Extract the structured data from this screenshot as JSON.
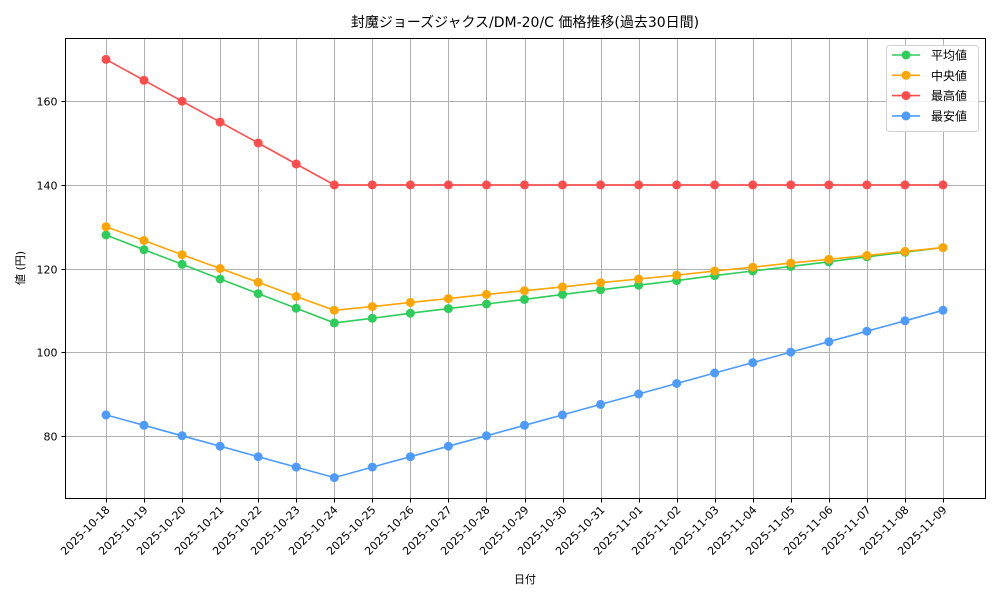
{
  "chart_data": {
    "type": "line",
    "title": "封魔ジョーズジャクス/DM-20/C 価格推移(過去30日間)",
    "xlabel": "日付",
    "ylabel": "値 (円)",
    "ylim": [
      65,
      175
    ],
    "yticks": [
      80,
      100,
      120,
      140,
      160
    ],
    "grid": true,
    "legend_position": "upper right",
    "categories": [
      "2025-10-18",
      "2025-10-19",
      "2025-10-20",
      "2025-10-21",
      "2025-10-22",
      "2025-10-23",
      "2025-10-24",
      "2025-10-25",
      "2025-10-26",
      "2025-10-27",
      "2025-10-28",
      "2025-10-29",
      "2025-10-30",
      "2025-10-31",
      "2025-11-01",
      "2025-11-02",
      "2025-11-03",
      "2025-11-04",
      "2025-11-05",
      "2025-11-06",
      "2025-11-07",
      "2025-11-08",
      "2025-11-09"
    ],
    "series": [
      {
        "name": "平均値",
        "color": "#2ecc5a",
        "values": [
          128,
          124.5,
          121,
          117.5,
          114,
          110.5,
          107,
          108.1,
          109.3,
          110.4,
          111.5,
          112.6,
          113.8,
          114.9,
          116,
          117.1,
          118.3,
          119.4,
          120.5,
          121.6,
          122.8,
          123.9,
          125
        ]
      },
      {
        "name": "中央値",
        "color": "#ffa500",
        "values": [
          130,
          126.7,
          123.3,
          120,
          116.7,
          113.3,
          110,
          110.9,
          111.9,
          112.8,
          113.8,
          114.7,
          115.6,
          116.6,
          117.5,
          118.4,
          119.4,
          120.3,
          121.3,
          122.2,
          123.1,
          124.1,
          125
        ]
      },
      {
        "name": "最高値",
        "color": "#ff4d4d",
        "values": [
          170,
          165,
          160,
          155,
          150,
          145,
          140,
          140,
          140,
          140,
          140,
          140,
          140,
          140,
          140,
          140,
          140,
          140,
          140,
          140,
          140,
          140,
          140
        ]
      },
      {
        "name": "最安値",
        "color": "#4d9bff",
        "values": [
          85,
          82.5,
          80,
          77.5,
          75,
          72.5,
          70,
          72.5,
          75,
          77.5,
          80,
          82.5,
          85,
          87.5,
          90,
          92.5,
          95,
          97.5,
          100,
          102.5,
          105,
          107.5,
          110
        ]
      }
    ]
  }
}
